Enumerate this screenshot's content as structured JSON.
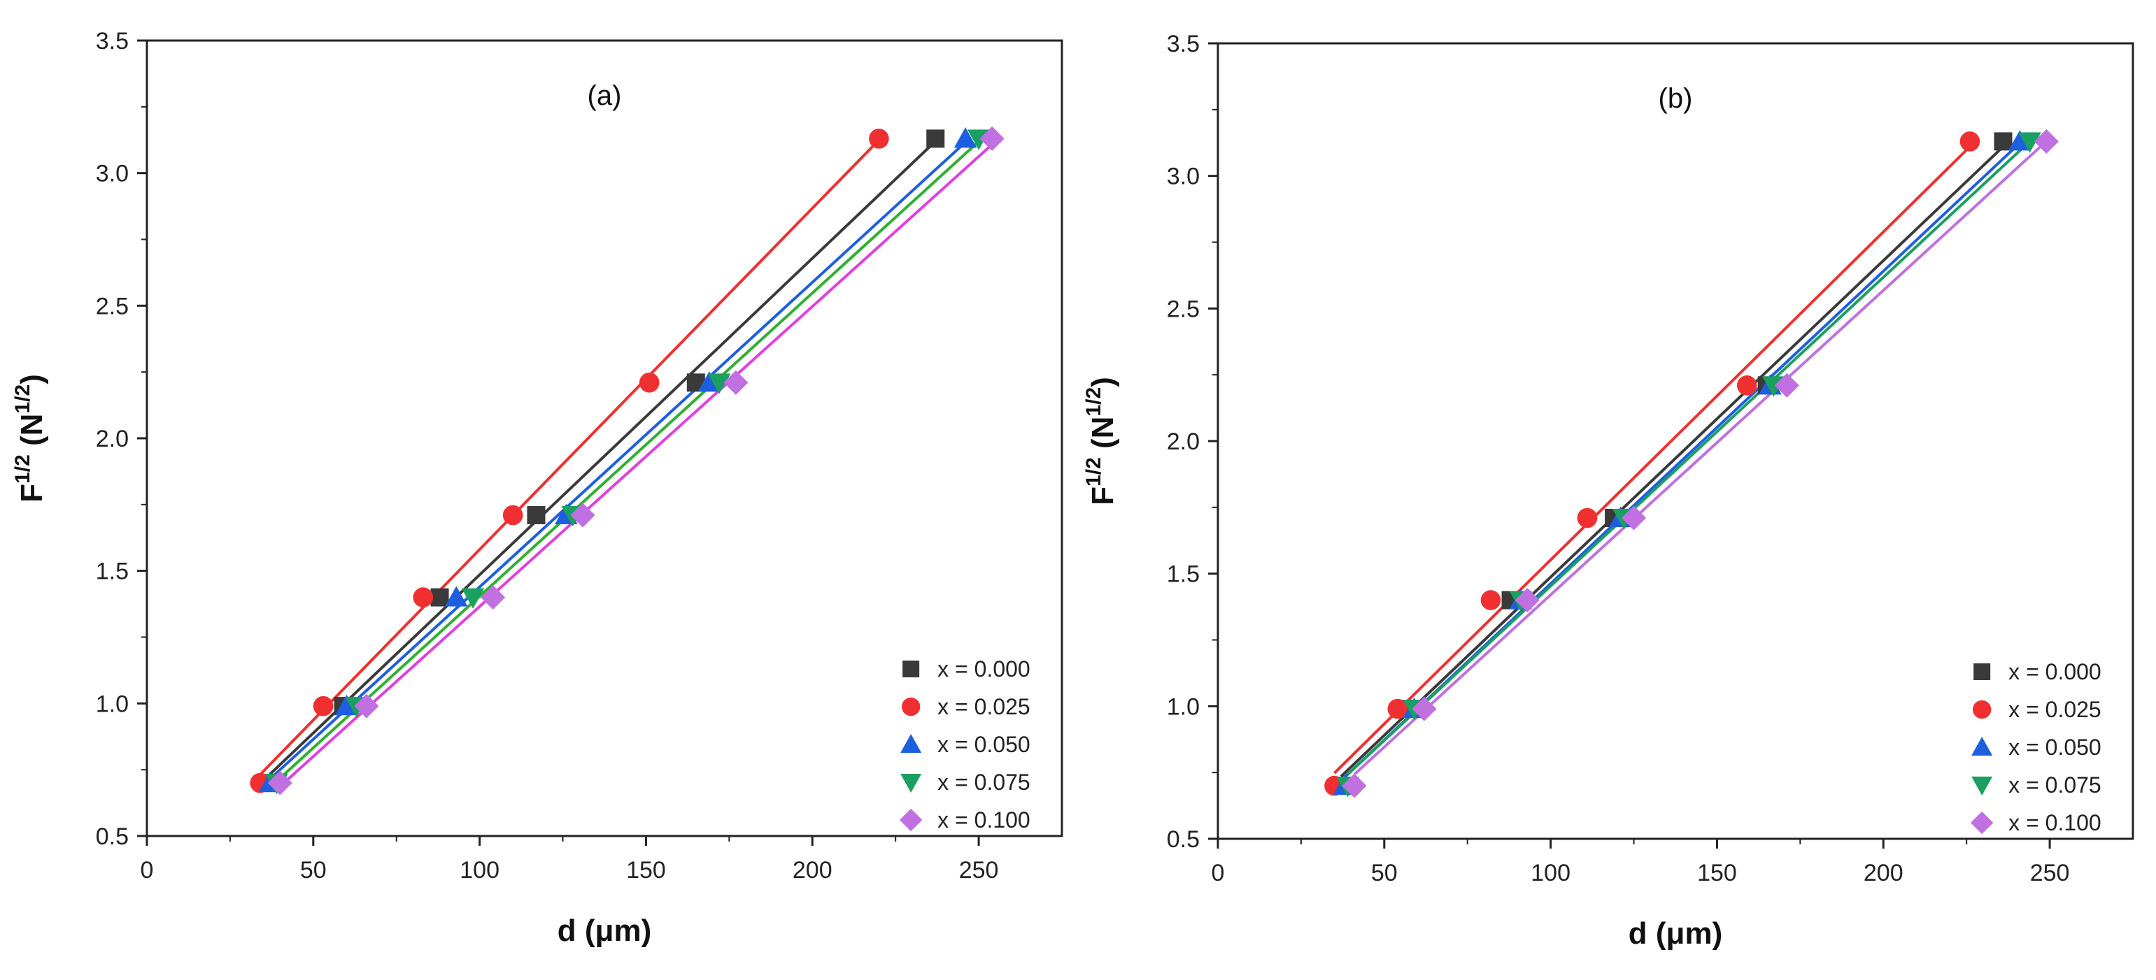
{
  "colors": {
    "x000": "#3a3a3a",
    "x025": "#f03030",
    "x050": "#1e5fe0",
    "x075": "#1aa060",
    "x100": "#c070e0",
    "line075": "#30b030",
    "line100": "#e040e0"
  },
  "chart_data": [
    {
      "type": "scatter",
      "panel_label": "(a)",
      "xlabel": "d (μm)",
      "ylabel": "F1/2 (N1/2)",
      "ylabel_parts": {
        "base": "F",
        "sup1": "1/2",
        "open": " (N",
        "sup2": "1/2",
        "close": ")"
      },
      "xlim": [
        0,
        275
      ],
      "ylim": [
        0.5,
        3.5
      ],
      "xticks": [
        0,
        50,
        100,
        150,
        200,
        250
      ],
      "yticks": [
        "0.5",
        "1.0",
        "1.5",
        "2.0",
        "2.5",
        "3.0",
        "3.5"
      ],
      "legend_position": "bottom-right",
      "series": [
        {
          "name": "x = 0.000",
          "marker": "square",
          "color_key": "x000",
          "line_key": "x000",
          "x": [
            37,
            59,
            88,
            117,
            165,
            237
          ],
          "y": [
            0.7,
            0.99,
            1.4,
            1.71,
            2.21,
            3.13
          ]
        },
        {
          "name": "x = 0.025",
          "marker": "circle",
          "color_key": "x025",
          "line_key": "x025",
          "x": [
            34,
            53,
            83,
            110,
            151,
            220
          ],
          "y": [
            0.7,
            0.99,
            1.4,
            1.71,
            2.21,
            3.13
          ]
        },
        {
          "name": "x = 0.050",
          "marker": "triangle-up",
          "color_key": "x050",
          "line_key": "x050",
          "x": [
            37,
            60,
            93,
            126,
            169,
            246
          ],
          "y": [
            0.7,
            0.99,
            1.4,
            1.71,
            2.21,
            3.13
          ]
        },
        {
          "name": "x = 0.075",
          "marker": "triangle-down",
          "color_key": "x075",
          "line_key": "line075",
          "x": [
            39,
            63,
            98,
            128,
            172,
            250
          ],
          "y": [
            0.7,
            0.99,
            1.4,
            1.71,
            2.21,
            3.13
          ]
        },
        {
          "name": "x = 0.100",
          "marker": "diamond",
          "color_key": "x100",
          "line_key": "line100",
          "x": [
            40,
            66,
            104,
            131,
            177,
            254
          ],
          "y": [
            0.7,
            0.99,
            1.4,
            1.71,
            2.21,
            3.13
          ]
        }
      ]
    },
    {
      "type": "scatter",
      "panel_label": "(b)",
      "xlabel": "d (μm)",
      "ylabel": "F1/2 (N1/2)",
      "ylabel_parts": {
        "base": "F",
        "sup1": "1/2",
        "open": " (N",
        "sup2": "1/2",
        "close": ")"
      },
      "xlim": [
        0,
        275
      ],
      "ylim": [
        0.5,
        3.5
      ],
      "xticks": [
        0,
        50,
        100,
        150,
        200,
        250
      ],
      "yticks": [
        "0.5",
        "1.0",
        "1.5",
        "2.0",
        "2.5",
        "3.0",
        "3.5"
      ],
      "legend_position": "bottom-right",
      "series": [
        {
          "name": "x = 0.000",
          "marker": "square",
          "color_key": "x000",
          "line_key": "x000",
          "x": [
            37,
            57,
            88,
            119,
            165,
            236
          ],
          "y": [
            0.7,
            0.99,
            1.4,
            1.71,
            2.21,
            3.13
          ]
        },
        {
          "name": "x = 0.025",
          "marker": "circle",
          "color_key": "x025",
          "line_key": "x025",
          "x": [
            35,
            54,
            82,
            111,
            159,
            226
          ],
          "y": [
            0.7,
            0.99,
            1.4,
            1.71,
            2.21,
            3.13
          ]
        },
        {
          "name": "x = 0.050",
          "marker": "triangle-up",
          "color_key": "x050",
          "line_key": "x050",
          "x": [
            38,
            59,
            91,
            121,
            166,
            241
          ],
          "y": [
            0.7,
            0.99,
            1.4,
            1.71,
            2.21,
            3.13
          ]
        },
        {
          "name": "x = 0.075",
          "marker": "triangle-down",
          "color_key": "x075",
          "line_key": "x075",
          "x": [
            39,
            59,
            91,
            122,
            167,
            244
          ],
          "y": [
            0.7,
            0.99,
            1.4,
            1.71,
            2.21,
            3.13
          ]
        },
        {
          "name": "x = 0.100",
          "marker": "diamond",
          "color_key": "x100",
          "line_key": "x100",
          "x": [
            41,
            62,
            93,
            125,
            171,
            249
          ],
          "y": [
            0.7,
            0.99,
            1.4,
            1.71,
            2.21,
            3.13
          ]
        }
      ]
    }
  ]
}
